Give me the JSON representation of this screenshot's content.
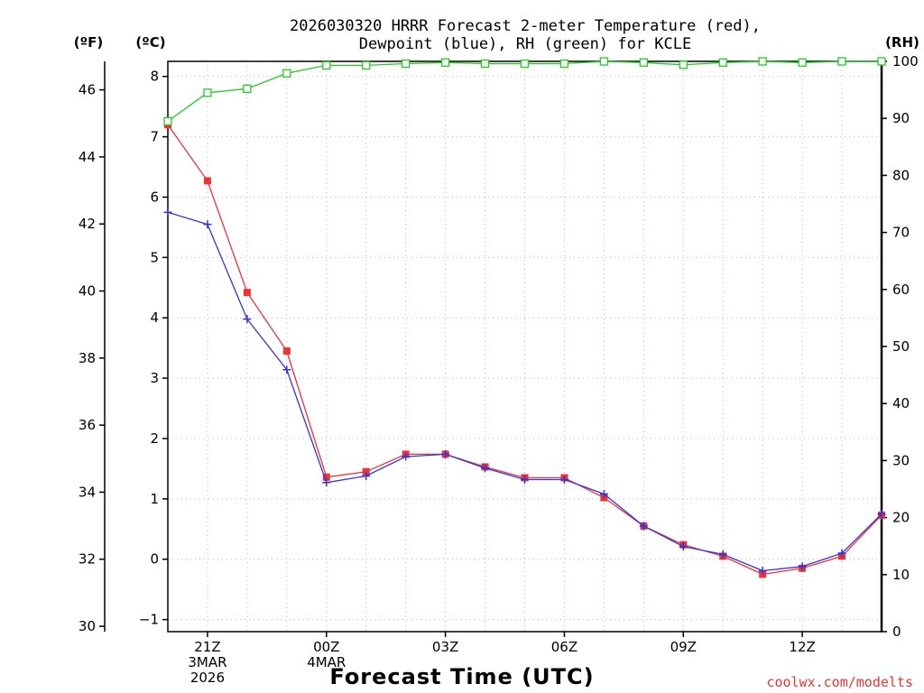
{
  "chart_data": {
    "type": "line",
    "title_line1": "2026030320 HRRR Forecast 2-meter Temperature (red),",
    "title_line2": "Dewpoint (blue), RH (green) for KCLE",
    "xlabel": "Forecast Time (UTC)",
    "credit": "coolwx.com/modelts",
    "left_outer_unit": "(ºF)",
    "left_inner_unit": "(ºC)",
    "right_unit": "(RH)",
    "x_hours": [
      0,
      1,
      2,
      3,
      4,
      5,
      6,
      7,
      8,
      9,
      10,
      11,
      12,
      13,
      14,
      15,
      16,
      17,
      18
    ],
    "x_range": [
      0,
      18
    ],
    "x_ticks": [
      {
        "hour": 1,
        "lines": [
          "21Z",
          "3MAR",
          "2026"
        ]
      },
      {
        "hour": 4,
        "lines": [
          "00Z",
          "4MAR"
        ]
      },
      {
        "hour": 7,
        "lines": [
          "03Z"
        ]
      },
      {
        "hour": 10,
        "lines": [
          "06Z"
        ]
      },
      {
        "hour": 13,
        "lines": [
          "09Z"
        ]
      },
      {
        "hour": 16,
        "lines": [
          "12Z"
        ]
      }
    ],
    "celsius_range": [
      -1.2,
      8.25
    ],
    "celsius_ticks": [
      "8",
      "7",
      "6",
      "5",
      "4",
      "3",
      "2",
      "1",
      "0",
      "−1"
    ],
    "fahrenheit_ticks": [
      "46",
      "44",
      "42",
      "40",
      "38",
      "36",
      "34",
      "32",
      "30"
    ],
    "rh_range": [
      0,
      100
    ],
    "rh_ticks": [
      "100",
      "90",
      "80",
      "70",
      "60",
      "50",
      "40",
      "30",
      "20",
      "10",
      "0"
    ],
    "series": [
      {
        "name": "Temperature (°C)",
        "axis": "celsius",
        "color": "#ee3333",
        "marker": "filled-square",
        "values": [
          7.2,
          6.27,
          4.42,
          3.45,
          1.36,
          1.45,
          1.74,
          1.74,
          1.53,
          1.35,
          1.35,
          1.02,
          0.55,
          0.24,
          0.05,
          -0.25,
          -0.15,
          0.05,
          0.73
        ]
      },
      {
        "name": "Dewpoint (°C)",
        "axis": "celsius",
        "color": "#3333dd",
        "marker": "plus",
        "values": [
          5.75,
          5.55,
          3.98,
          3.14,
          1.27,
          1.38,
          1.7,
          1.74,
          1.51,
          1.32,
          1.32,
          1.08,
          0.55,
          0.21,
          0.08,
          -0.19,
          -0.12,
          0.1,
          0.75
        ]
      },
      {
        "name": "RH (%)",
        "axis": "rh",
        "color": "#22cc22",
        "marker": "open-square",
        "values": [
          89.5,
          94.5,
          95.2,
          97.9,
          99.3,
          99.3,
          99.6,
          99.8,
          99.6,
          99.6,
          99.6,
          100,
          99.8,
          99.4,
          99.8,
          100,
          99.8,
          100,
          100
        ]
      }
    ]
  }
}
